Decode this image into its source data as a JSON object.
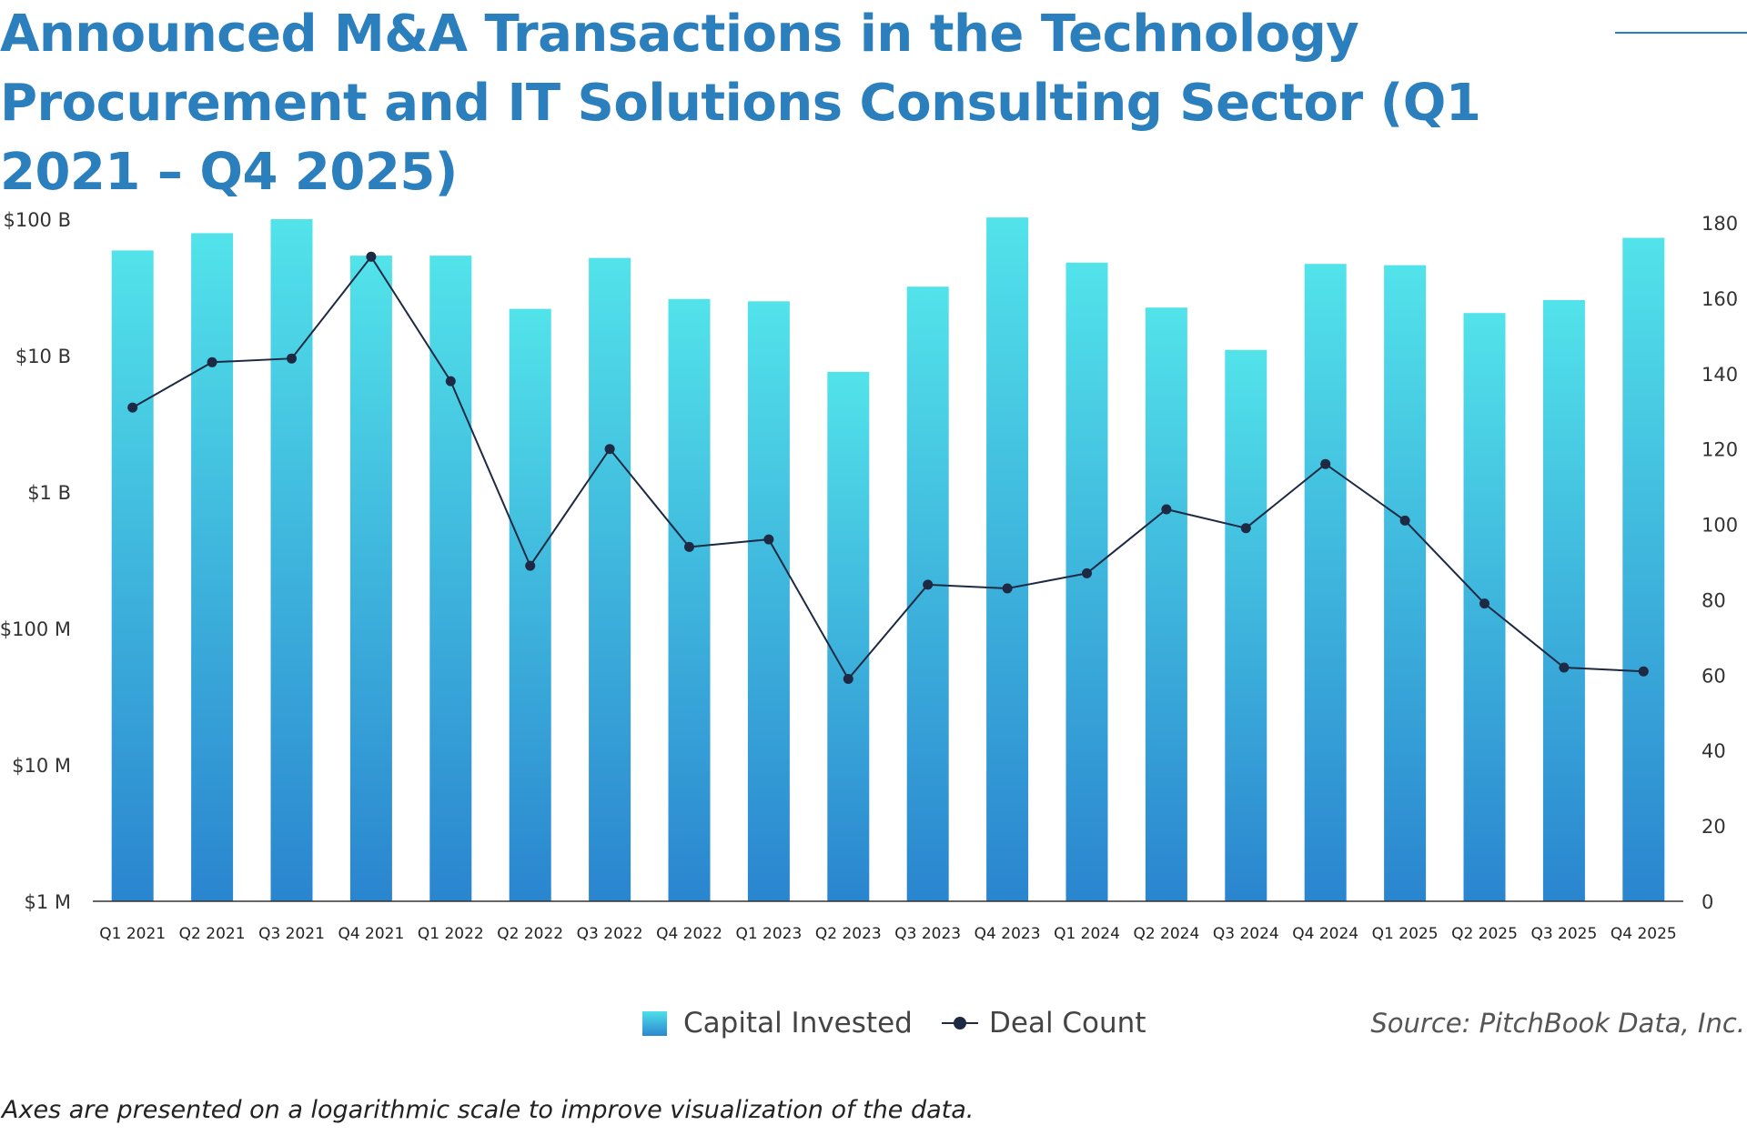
{
  "chart_data": {
    "type": "bar",
    "title": "Announced M&A Transactions in the Technology Procurement and IT Solutions Consulting Sector (Q1 2021 – Q4 2025)",
    "categories": [
      "Q1 2021",
      "Q2 2021",
      "Q3 2021",
      "Q4 2021",
      "Q1 2022",
      "Q2 2022",
      "Q3 2022",
      "Q4 2022",
      "Q1 2023",
      "Q2 2023",
      "Q3 2023",
      "Q4 2023",
      "Q1 2024",
      "Q2 2024",
      "Q3 2024",
      "Q4 2024",
      "Q1 2025",
      "Q2 2025",
      "Q3 2025",
      "Q4 2025"
    ],
    "series": [
      {
        "name": "Capital Invested",
        "type": "bar",
        "axis": "left",
        "unit": "USD millions",
        "values": [
          59000,
          79000,
          100000,
          54000,
          54000,
          22000,
          52000,
          26000,
          25000,
          7600,
          32000,
          103000,
          48000,
          22500,
          11000,
          47000,
          46000,
          20500,
          25500,
          73000
        ]
      },
      {
        "name": "Deal Count",
        "type": "line",
        "axis": "right",
        "values": [
          131,
          143,
          144,
          171,
          138,
          89,
          120,
          94,
          96,
          59,
          84,
          83,
          87,
          104,
          99,
          116,
          101,
          79,
          62,
          61
        ]
      }
    ],
    "y_left": {
      "scale": "log",
      "ylim": [
        1,
        100000
      ],
      "ticks": [
        1,
        10,
        100,
        1000,
        10000,
        100000
      ],
      "tick_labels": [
        "$1 M",
        "$10 M",
        "$100 M",
        "$1 B",
        "$10 B",
        "$100 B"
      ]
    },
    "y_right": {
      "scale": "linear",
      "ylim": [
        0,
        180
      ],
      "ticks": [
        0,
        20,
        40,
        60,
        80,
        100,
        120,
        140,
        160,
        180
      ],
      "tick_labels": [
        "0",
        "20",
        "40",
        "60",
        "80",
        "100",
        "120",
        "140",
        "160",
        "180"
      ]
    },
    "xlabel": "",
    "ylabel": "",
    "grid": false,
    "legend": {
      "position": "bottom-center",
      "entries": [
        "Capital Invested",
        "Deal Count"
      ]
    },
    "colors": {
      "bar_top": "#52e3ea",
      "bar_bottom": "#2a85cf",
      "line": "#1e2a44",
      "title": "#2c7fbd",
      "axis": "#333333"
    }
  },
  "legend": {
    "bar_label": "Capital Invested",
    "line_label": "Deal Count"
  },
  "source": "Source: PitchBook Data, Inc.",
  "footnote": "Axes are presented on a logarithmic scale to improve visualization of the data."
}
